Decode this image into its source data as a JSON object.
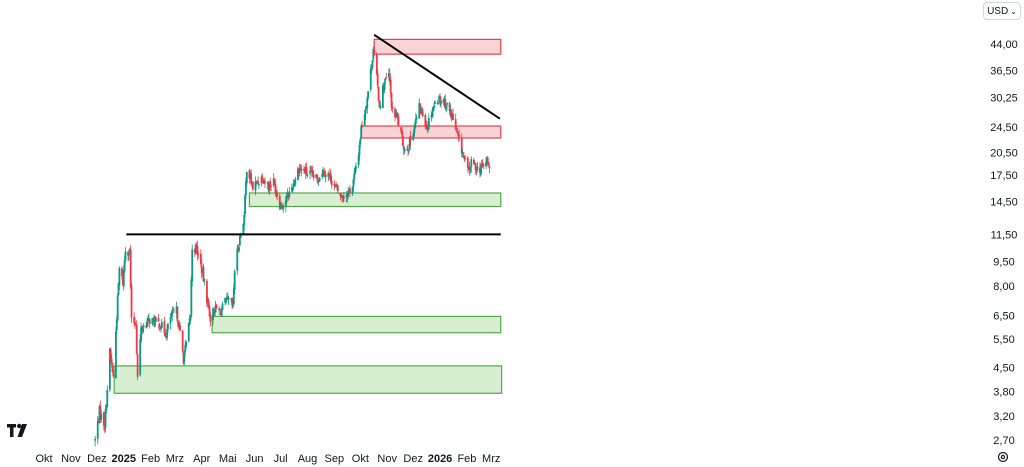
{
  "toolbar": {
    "currency_label": "USD"
  },
  "icons": {
    "currency_chevron": "chevron-down-icon",
    "settings": "gear-icon",
    "logo": "tradingview-logo-icon"
  },
  "colors": {
    "up": "#089981",
    "down": "#f23645",
    "support_fill": "#d7eed1",
    "support_stroke": "#53a84a",
    "resistance_fill": "#f9d3d6",
    "resistance_stroke": "#e2424f",
    "trendline": "#000000"
  },
  "chart_data": {
    "type": "candlestick",
    "scale": "log",
    "ylim": [
      2.55,
      50
    ],
    "y_ticks": [
      "44,00",
      "36,50",
      "30,25",
      "24,50",
      "20,50",
      "17,50",
      "14,50",
      "11,50",
      "9,50",
      "8,00",
      "6,50",
      "5,50",
      "4,50",
      "3,80",
      "3,20",
      "2,70"
    ],
    "x_ticks": [
      {
        "label": "Okt",
        "date": "2024-10-01"
      },
      {
        "label": "Nov",
        "date": "2024-11-01"
      },
      {
        "label": "Dez",
        "date": "2024-12-01"
      },
      {
        "label": "2025",
        "date": "2025-01-01",
        "bold": true
      },
      {
        "label": "Feb",
        "date": "2025-02-01"
      },
      {
        "label": "Mrz",
        "date": "2025-03-01"
      },
      {
        "label": "Apr",
        "date": "2025-04-01"
      },
      {
        "label": "Mai",
        "date": "2025-05-01"
      },
      {
        "label": "Jun",
        "date": "2025-06-01"
      },
      {
        "label": "Jul",
        "date": "2025-07-01"
      },
      {
        "label": "Aug",
        "date": "2025-08-01"
      },
      {
        "label": "Sep",
        "date": "2025-09-01"
      },
      {
        "label": "Okt",
        "date": "2025-10-01"
      },
      {
        "label": "Nov",
        "date": "2025-11-01"
      },
      {
        "label": "Dez",
        "date": "2025-12-01"
      },
      {
        "label": "2026",
        "date": "2026-01-01",
        "bold": true
      },
      {
        "label": "Feb",
        "date": "2026-02-01"
      },
      {
        "label": "Mrz",
        "date": "2026-03-01"
      }
    ],
    "price_path": [
      [
        "2024-11-29",
        2.7
      ],
      [
        "2024-12-04",
        3.3
      ],
      [
        "2024-12-10",
        3.0
      ],
      [
        "2024-12-16",
        5.0
      ],
      [
        "2024-12-20",
        4.2
      ],
      [
        "2024-12-27",
        9.0
      ],
      [
        "2024-12-31",
        8.2
      ],
      [
        "2025-01-03",
        10.4
      ],
      [
        "2025-01-08",
        10.2
      ],
      [
        "2025-01-10",
        6.2
      ],
      [
        "2025-01-15",
        6.2
      ],
      [
        "2025-01-17",
        4.2
      ],
      [
        "2025-01-21",
        5.9
      ],
      [
        "2025-01-31",
        6.3
      ],
      [
        "2025-02-12",
        6.1
      ],
      [
        "2025-02-19",
        5.7
      ],
      [
        "2025-02-24",
        6.4
      ],
      [
        "2025-03-03",
        6.7
      ],
      [
        "2025-03-07",
        5.7
      ],
      [
        "2025-03-11",
        4.8
      ],
      [
        "2025-03-14",
        5.3
      ],
      [
        "2025-03-19",
        6.5
      ],
      [
        "2025-03-21",
        10.5
      ],
      [
        "2025-03-26",
        10.4
      ],
      [
        "2025-04-01",
        9.0
      ],
      [
        "2025-04-08",
        7.1
      ],
      [
        "2025-04-11",
        6.4
      ],
      [
        "2025-04-16",
        6.8
      ],
      [
        "2025-04-23",
        6.7
      ],
      [
        "2025-04-28",
        7.1
      ],
      [
        "2025-05-02",
        7.2
      ],
      [
        "2025-05-07",
        6.9
      ],
      [
        "2025-05-09",
        9.0
      ],
      [
        "2025-05-14",
        10.9
      ],
      [
        "2025-05-20",
        13.1
      ],
      [
        "2025-05-23",
        18.5
      ],
      [
        "2025-05-30",
        16.0
      ],
      [
        "2025-06-04",
        16.6
      ],
      [
        "2025-06-10",
        17.3
      ],
      [
        "2025-06-16",
        16.2
      ],
      [
        "2025-06-23",
        16.7
      ],
      [
        "2025-06-30",
        14.3
      ],
      [
        "2025-07-04",
        14.2
      ],
      [
        "2025-07-10",
        15.2
      ],
      [
        "2025-07-16",
        16.5
      ],
      [
        "2025-07-22",
        18.4
      ],
      [
        "2025-07-28",
        18.0
      ],
      [
        "2025-08-05",
        17.5
      ],
      [
        "2025-08-12",
        16.9
      ],
      [
        "2025-08-18",
        18.1
      ],
      [
        "2025-08-26",
        17.5
      ],
      [
        "2025-09-02",
        16.0
      ],
      [
        "2025-09-09",
        15.0
      ],
      [
        "2025-09-16",
        15.4
      ],
      [
        "2025-09-22",
        16.2
      ],
      [
        "2025-09-29",
        20.5
      ],
      [
        "2025-10-02",
        24.3
      ],
      [
        "2025-10-08",
        29.0
      ],
      [
        "2025-10-14",
        38.0
      ],
      [
        "2025-10-16",
        43.0
      ],
      [
        "2025-10-20",
        34.5
      ],
      [
        "2025-10-23",
        28.5
      ],
      [
        "2025-10-28",
        33.0
      ],
      [
        "2025-11-03",
        35.5
      ],
      [
        "2025-11-07",
        27.0
      ],
      [
        "2025-11-12",
        26.5
      ],
      [
        "2025-11-18",
        22.5
      ],
      [
        "2025-11-21",
        21.0
      ],
      [
        "2025-11-26",
        21.5
      ],
      [
        "2025-12-02",
        24.5
      ],
      [
        "2025-12-08",
        28.0
      ],
      [
        "2025-12-12",
        27.0
      ],
      [
        "2025-12-17",
        24.5
      ],
      [
        "2025-12-22",
        27.5
      ],
      [
        "2025-12-29",
        30.0
      ],
      [
        "2026-01-05",
        29.5
      ],
      [
        "2026-01-09",
        28.5
      ],
      [
        "2026-01-15",
        26.5
      ],
      [
        "2026-01-21",
        23.0
      ],
      [
        "2026-01-27",
        20.5
      ],
      [
        "2026-02-02",
        17.8
      ],
      [
        "2026-02-06",
        19.0
      ],
      [
        "2026-02-11",
        18.5
      ],
      [
        "2026-02-17",
        18.2
      ],
      [
        "2026-02-20",
        18.8
      ],
      [
        "2026-02-24",
        19.3
      ],
      [
        "2026-02-27",
        18.3
      ]
    ],
    "annotations": {
      "support_zones": [
        {
          "from": "2024-12-21",
          "to": "2026-03-13",
          "low": 3.75,
          "high": 4.55
        },
        {
          "from": "2025-04-13",
          "to": "2026-03-12",
          "low": 5.75,
          "high": 6.45
        },
        {
          "from": "2025-05-26",
          "to": "2026-03-12",
          "low": 14.0,
          "high": 15.4
        }
      ],
      "resistance_zones": [
        {
          "from": "2025-10-02",
          "to": "2026-03-12",
          "low": 22.7,
          "high": 24.7
        },
        {
          "from": "2025-10-17",
          "to": "2026-03-12",
          "low": 41.0,
          "high": 45.5
        }
      ],
      "horizontal_lines": [
        {
          "from": "2025-01-04",
          "to": "2026-03-12",
          "value": 11.5
        }
      ],
      "trend_lines": [
        {
          "from_date": "2025-10-17",
          "from_value": 47.0,
          "to_date": "2026-03-11",
          "to_value": 26.0
        }
      ]
    }
  }
}
